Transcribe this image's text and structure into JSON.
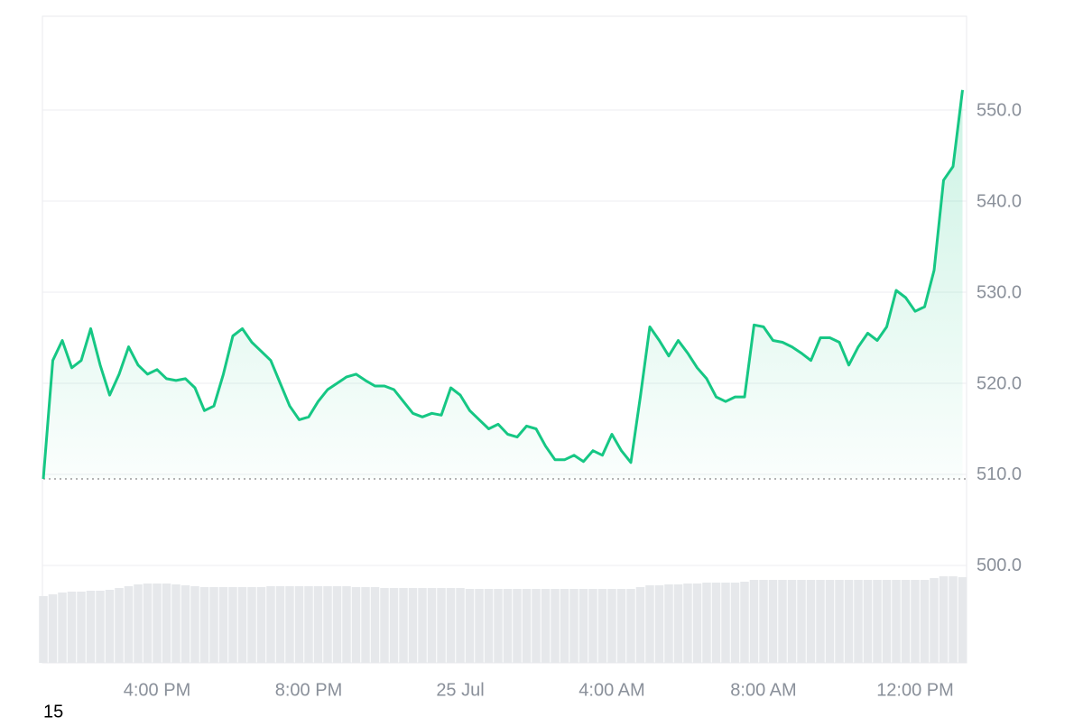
{
  "chart_data": {
    "type": "line",
    "categories": [
      null,
      null,
      null,
      null,
      null,
      null,
      null,
      null,
      null,
      null,
      null,
      null,
      "4:00 PM",
      null,
      null,
      null,
      null,
      null,
      null,
      null,
      null,
      null,
      null,
      null,
      null,
      null,
      null,
      null,
      "8:00 PM",
      null,
      null,
      null,
      null,
      null,
      null,
      null,
      null,
      null,
      null,
      null,
      null,
      null,
      null,
      null,
      "25 Jul",
      null,
      null,
      null,
      null,
      null,
      null,
      null,
      null,
      null,
      null,
      null,
      null,
      null,
      null,
      null,
      "4:00 AM",
      null,
      null,
      null,
      null,
      null,
      null,
      null,
      null,
      null,
      null,
      null,
      null,
      null,
      null,
      null,
      "8:00 AM",
      null,
      null,
      null,
      null,
      null,
      null,
      null,
      null,
      null,
      null,
      null,
      null,
      null,
      null,
      null,
      "12:00 PM",
      null,
      null,
      null,
      null,
      null
    ],
    "series": [
      {
        "color": "#16c784",
        "values": [
          509.5,
          522.5,
          524.7,
          521.7,
          522.5,
          526,
          522,
          518.7,
          521,
          524,
          522,
          521,
          521.5,
          520.5,
          520.3,
          520.5,
          519.5,
          517,
          517.5,
          521,
          525.2,
          526,
          524.5,
          523.5,
          522.5,
          520,
          517.5,
          516,
          516.3,
          518,
          519.3,
          520,
          520.7,
          521,
          520.3,
          519.7,
          519.7,
          519.3,
          518,
          516.7,
          516.3,
          516.7,
          516.5,
          519.5,
          518.7,
          517,
          516,
          515,
          515.5,
          514.4,
          514.1,
          515.3,
          515,
          513.1,
          511.6,
          511.6,
          512.1,
          511.4,
          512.6,
          512.1,
          514.4,
          512.6,
          511.3,
          518.5,
          526.2,
          524.7,
          523,
          524.7,
          523.3,
          521.7,
          520.5,
          518.5,
          518,
          518.5,
          518.5,
          526.4,
          526.2,
          524.7,
          524.5,
          524,
          523.3,
          522.5,
          525,
          525,
          524.5,
          522,
          524,
          525.5,
          524.7,
          526.2,
          530.2,
          529.4,
          527.9,
          528.4,
          532.4,
          542.3,
          543.8,
          552.2
        ]
      }
    ],
    "volume": {
      "color": "#e6e8eb",
      "ylim": [
        0,
        110
      ],
      "values": [
        74,
        76,
        78,
        79,
        79,
        80,
        80,
        81,
        83,
        85,
        87,
        88,
        88,
        88,
        87,
        86,
        85,
        84,
        84,
        84,
        84,
        84,
        84,
        84,
        85,
        85,
        85,
        85,
        85,
        85,
        85,
        85,
        85,
        84,
        84,
        84,
        83,
        83,
        83,
        83,
        83,
        83,
        83,
        83,
        83,
        82,
        82,
        82,
        82,
        82,
        82,
        82,
        82,
        82,
        82,
        82,
        82,
        82,
        82,
        82,
        82,
        82,
        82,
        84,
        86,
        86,
        87,
        87,
        88,
        88,
        89,
        89,
        89,
        89,
        90,
        92,
        92,
        92,
        92,
        92,
        92,
        92,
        92,
        92,
        92,
        92,
        92,
        92,
        92,
        92,
        92,
        92,
        92,
        92,
        94,
        96,
        96,
        95
      ]
    },
    "ylim": [
      489.3,
      560.3
    ],
    "yticks": [
      {
        "value": 500,
        "label": "500.0"
      },
      {
        "value": 510,
        "label": "510.0"
      },
      {
        "value": 520,
        "label": "520.0"
      },
      {
        "value": 530,
        "label": "530.0"
      },
      {
        "value": 540,
        "label": "540.0"
      },
      {
        "value": 550,
        "label": "550.0"
      }
    ],
    "grid": true,
    "footer_text": "15"
  }
}
